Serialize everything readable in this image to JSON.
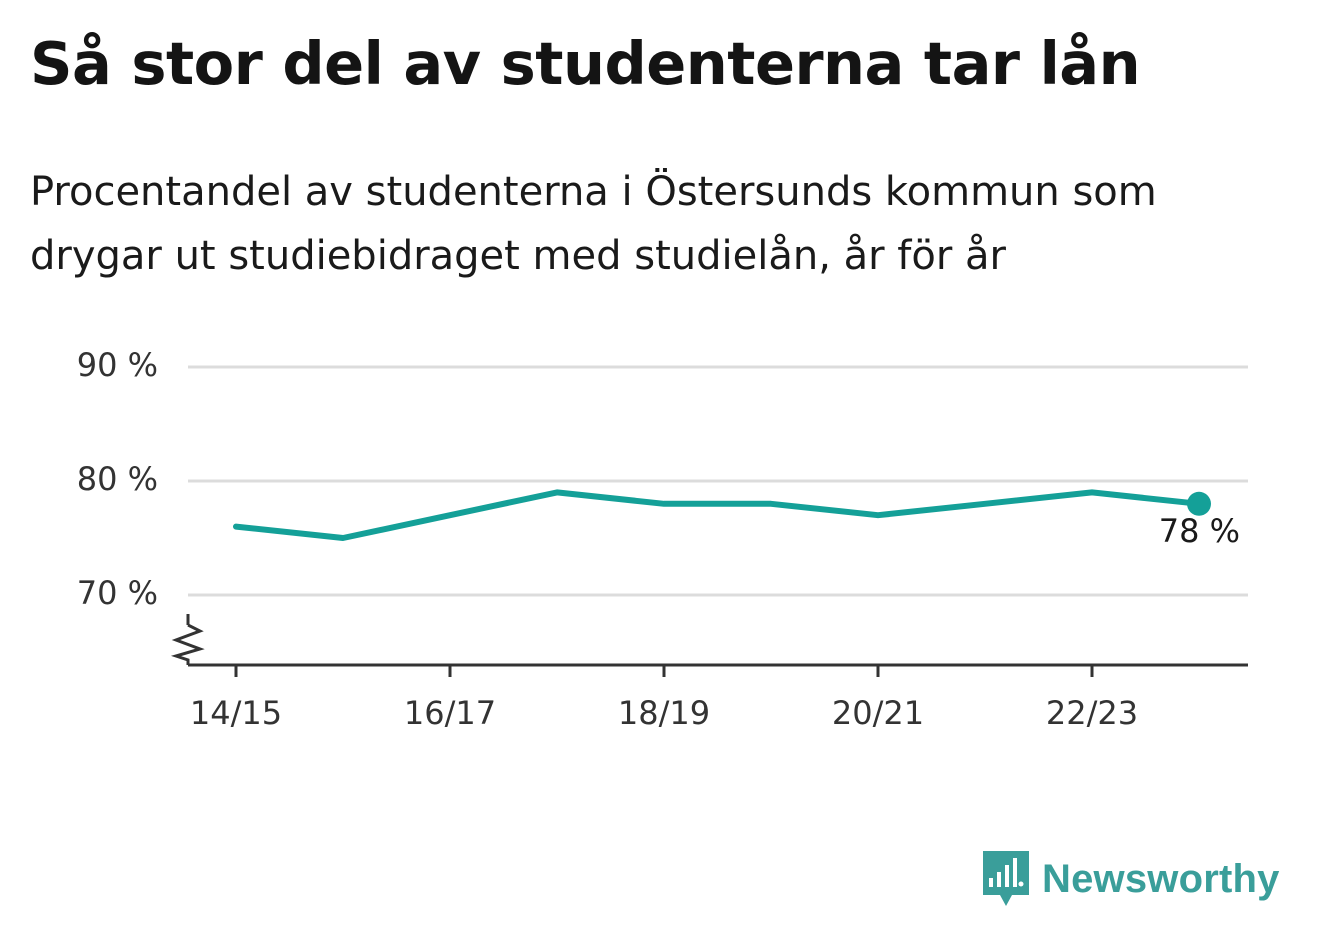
{
  "header": {
    "title": "Så stor del av studenterna tar lån",
    "subtitle": "Procentandel av studenterna i Östersunds kommun som drygar ut studiebidraget med studielån, år för år"
  },
  "colors": {
    "line": "#14a098",
    "grid": "#dcdcdc",
    "axis": "#333333",
    "brand": "#3a9e9a"
  },
  "chart_data": {
    "type": "line",
    "x": [
      "14/15",
      "15/16",
      "16/17",
      "17/18",
      "18/19",
      "19/20",
      "20/21",
      "21/22",
      "22/23",
      "23/24"
    ],
    "series": [
      {
        "values": [
          76,
          75,
          77,
          79,
          78,
          78,
          77,
          78,
          79,
          78
        ]
      }
    ],
    "x_tick_labels": [
      "14/15",
      "16/17",
      "18/19",
      "20/21",
      "22/23"
    ],
    "y_ticks": [
      70,
      80,
      90
    ],
    "y_tick_labels": [
      "70 %",
      "80 %",
      "90 %"
    ],
    "ylim": [
      64,
      90
    ],
    "y_axis_break": true,
    "grid": true,
    "legend": "none",
    "end_label": "78 %"
  },
  "branding": {
    "name": "Newsworthy",
    "icon": "newsworthy-logo-icon"
  }
}
